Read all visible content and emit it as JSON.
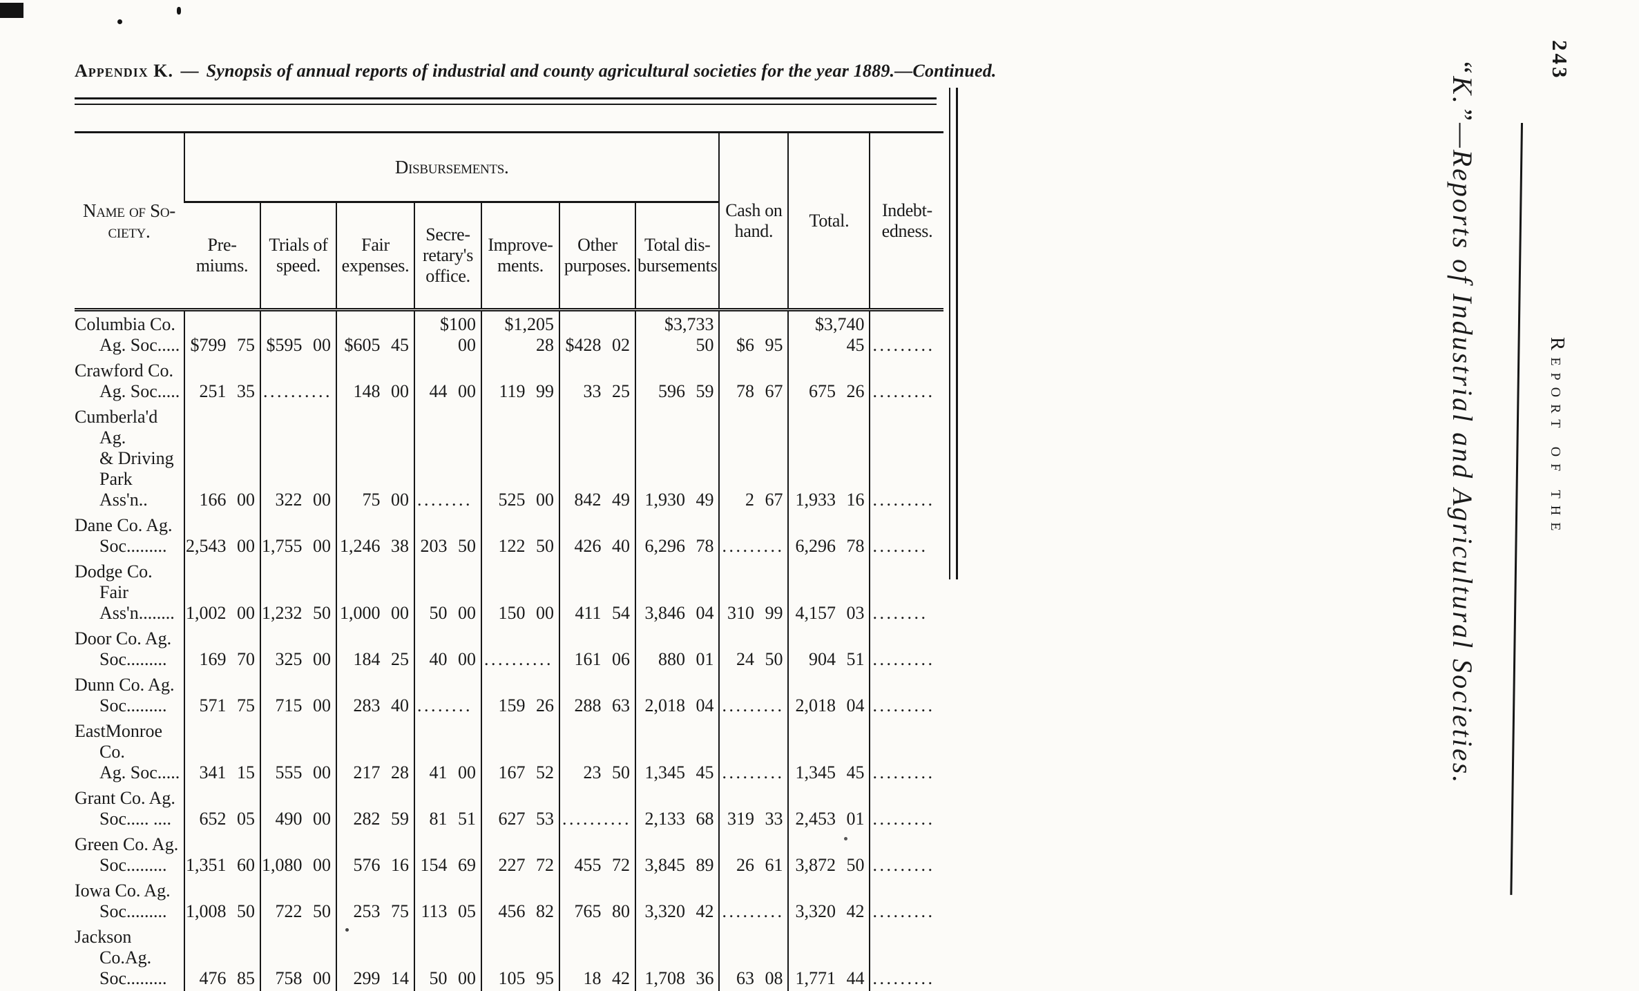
{
  "heading": {
    "prefix": "Appendix K.",
    "separator": "—",
    "text": "Synopsis of annual reports of industrial and county agricultural societies for the year 1889.—Continued."
  },
  "margin": {
    "page_number": "243",
    "running_title": "“K.”—Reports of Industrial and Agricultural Societies.",
    "running_header": "Report of the"
  },
  "table": {
    "header": {
      "name": "Name of So-\nciety.",
      "disbursements": "Disbursements.",
      "sub": [
        "Pre-\nmiums.",
        "Trials of\nspeed.",
        "Fair\nexpenses.",
        "Secre-\nretary's\noffice.",
        "Improve-\nments.",
        "Other\npurposes.",
        "Total dis-\nbursements"
      ],
      "cash": "Cash on\nhand.",
      "total": "Total.",
      "indebtedness": "Indebt-\nedness."
    },
    "rows": [
      {
        "name": "Columbia Co.\nAg. Soc.....",
        "values": [
          "$799 75",
          "$595 00",
          "$605 45",
          "$100 00",
          "$1,205 28",
          "$428 02",
          "$3,733 50",
          "$6 95",
          "$3,740 45",
          "........."
        ]
      },
      {
        "name": "Crawford Co.\nAg. Soc.....",
        "values": [
          "251 35",
          "..........",
          "148 00",
          "44 00",
          "119 99",
          "33 25",
          "596 59",
          "78 67",
          "675 26",
          "........."
        ]
      },
      {
        "name": "Cumberla'd Ag.\n& Driving\nPark Ass'n..",
        "values": [
          "166 00",
          "322 00",
          "75 00",
          "........",
          "525 00",
          "842 49",
          "1,930 49",
          "2 67",
          "1,933 16",
          "........."
        ]
      },
      {
        "name": "Dane Co. Ag.\nSoc.........",
        "values": [
          "2,543 00",
          "1,755 00",
          "1,246 38",
          "203 50",
          "122 50",
          "426 40",
          "6,296 78",
          ".........",
          "6,296 78",
          "........"
        ]
      },
      {
        "name": "Dodge Co. Fair\nAss'n........",
        "values": [
          "1,002 00",
          "1,232 50",
          "1,000 00",
          "50 00",
          "150 00",
          "411 54",
          "3,846 04",
          "310 99",
          "4,157 03",
          "........"
        ]
      },
      {
        "name": "Door Co. Ag.\nSoc.........",
        "values": [
          "169 70",
          "325 00",
          "184 25",
          "40 00",
          "..........",
          "161 06",
          "880 01",
          "24 50",
          "904 51",
          "........."
        ]
      },
      {
        "name": "Dunn Co. Ag.\nSoc.........",
        "values": [
          "571 75",
          "715 00",
          "283 40",
          "........",
          "159 26",
          "288 63",
          "2,018 04",
          ".........",
          "2,018 04",
          "........."
        ]
      },
      {
        "name": "EastMonroe Co.\nAg. Soc.....",
        "values": [
          "341 15",
          "555 00",
          "217 28",
          "41 00",
          "167 52",
          "23 50",
          "1,345 45",
          ".........",
          "1,345 45",
          "........."
        ]
      },
      {
        "name": "Grant Co. Ag.\nSoc..... ....",
        "values": [
          "652 05",
          "490 00",
          "282 59",
          "81 51",
          "627 53",
          "..........",
          "2,133 68",
          "319 33",
          "2,453 01",
          "........."
        ]
      },
      {
        "name": "Green Co. Ag.\nSoc.........",
        "values": [
          "1,351 60",
          "1,080 00",
          "576 16",
          "154 69",
          "227 72",
          "455 72",
          "3,845 89",
          "26 61",
          "3,872 50",
          "........."
        ]
      },
      {
        "name": "Iowa Co. Ag.\nSoc.........",
        "values": [
          "1,008 50",
          "722 50",
          "253 75",
          "113 05",
          "456 82",
          "765 80",
          "3,320 42",
          ".........",
          "3,320 42",
          "........."
        ]
      },
      {
        "name": "Jackson Co.Ag.\nSoc.........",
        "values": [
          "476 85",
          "758 00",
          "299 14",
          "50 00",
          "105 95",
          "18 42",
          "1,708 36",
          "63 08",
          "1,771 44",
          "........."
        ]
      }
    ]
  }
}
